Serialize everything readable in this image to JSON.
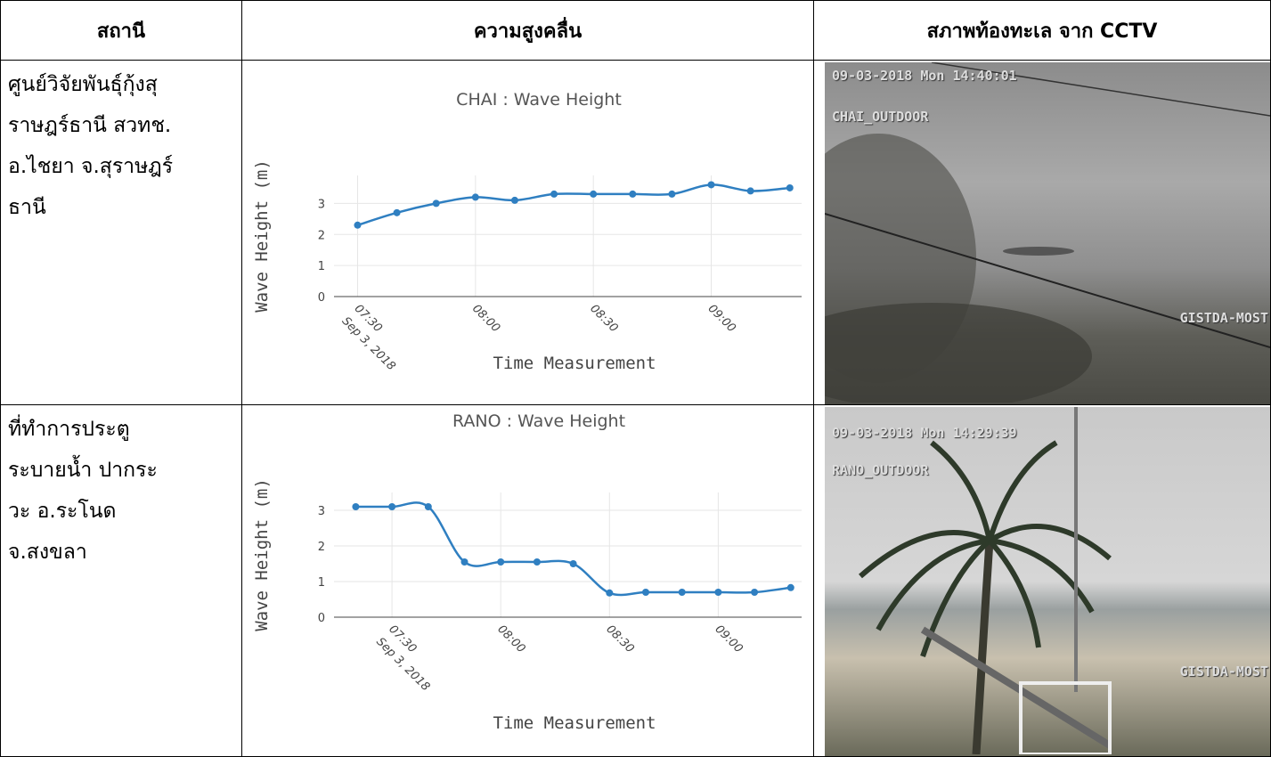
{
  "table": {
    "headers": [
      "สถานี",
      "ความสูงคลื่น",
      "สภาพท้องทะเล จาก CCTV"
    ],
    "rows": [
      {
        "station": [
          "ศูนย์วิจัยพันธุ์กุ้งสุ",
          "ราษฎร์ธานี สวทช.",
          "อ.ไชยา จ.สุราษฎร์",
          "ธานี"
        ],
        "chart": {
          "type": "line",
          "title": "CHAI : Wave Height",
          "x_label": "Time Measurement",
          "y_label": "Wave Height (m)",
          "x": [
            "07:30",
            "07:40",
            "07:50",
            "08:00",
            "08:10",
            "08:20",
            "08:30",
            "08:40",
            "08:50",
            "09:00",
            "09:10",
            "09:20"
          ],
          "values": [
            2.3,
            2.7,
            3.0,
            3.2,
            3.1,
            3.3,
            3.3,
            3.3,
            3.3,
            3.6,
            3.4,
            3.5
          ],
          "color": "#2f7fc1",
          "xlim": [
            "07:24",
            "09:23"
          ],
          "xticks": [
            "07:30",
            "08:00",
            "08:30",
            "09:00"
          ],
          "date_label": "Sep 3, 2018",
          "ylim": [
            0,
            3.9
          ],
          "yticks": [
            0,
            1,
            2,
            3
          ],
          "grid": true
        },
        "cctv": {
          "timestamp": "09-03-2018 Mon 14:40:01",
          "camera": "CHAI_OUTDOOR",
          "watermark": "GISTDA-MOST"
        }
      },
      {
        "station": [
          "ที่ทำการประตู",
          "ระบายน้ำ ปากระ",
          "วะ อ.ระโนด",
          "จ.สงขลา"
        ],
        "chart": {
          "type": "line",
          "title": "RANO : Wave Height",
          "x_label": "Time Measurement",
          "y_label": "Wave Height (m)",
          "x": [
            "07:20",
            "07:30",
            "07:40",
            "07:50",
            "08:00",
            "08:10",
            "08:20",
            "08:30",
            "08:40",
            "08:50",
            "09:00",
            "09:10",
            "09:20"
          ],
          "values": [
            3.1,
            3.1,
            3.1,
            1.55,
            1.55,
            1.55,
            1.5,
            0.68,
            0.7,
            0.7,
            0.7,
            0.7,
            0.83
          ],
          "color": "#2f7fc1",
          "xlim": [
            "07:14",
            "09:23"
          ],
          "xticks": [
            "07:30",
            "08:00",
            "08:30",
            "09:00"
          ],
          "date_label": "Sep 3, 2018",
          "ylim": [
            0,
            3.5
          ],
          "yticks": [
            0,
            1,
            2,
            3
          ],
          "grid": true
        },
        "cctv": {
          "timestamp": "09-03-2018 Mon 14:29:39",
          "camera": "RANO_OUTDOOR",
          "watermark": "GISTDA-MOST"
        }
      }
    ]
  }
}
